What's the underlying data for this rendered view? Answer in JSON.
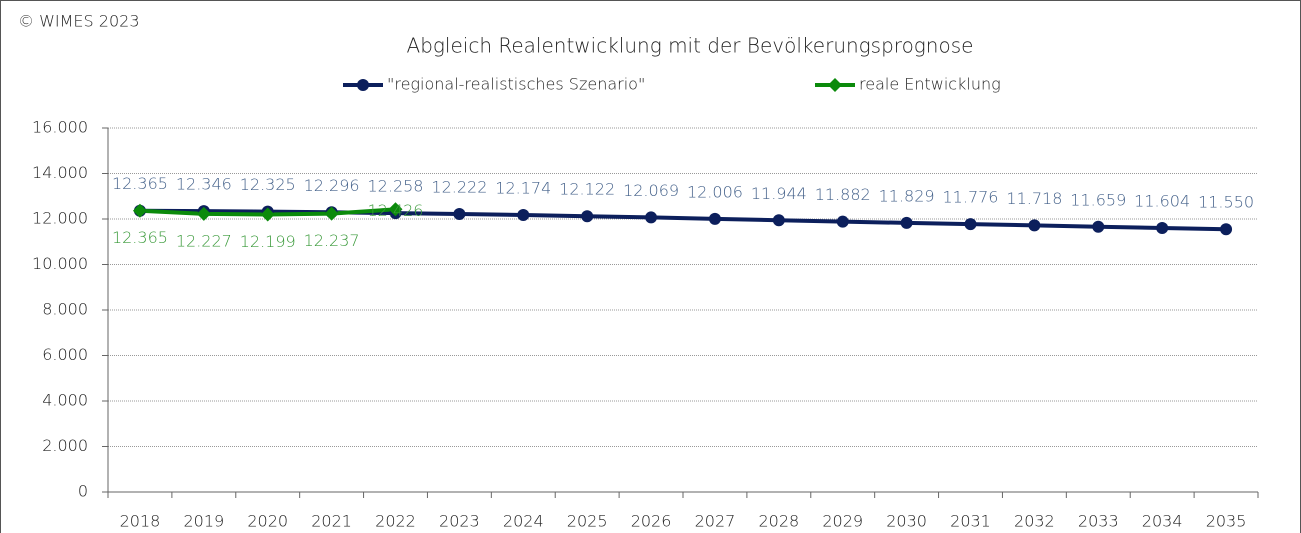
{
  "chart_data": {
    "type": "line",
    "title": "Abgleich Realentwicklung mit der Bevölkerungsprognose",
    "annotation": "© WIMES 2023",
    "categories": [
      "2018",
      "2019",
      "2020",
      "2021",
      "2022",
      "2023",
      "2024",
      "2025",
      "2026",
      "2027",
      "2028",
      "2029",
      "2030",
      "2031",
      "2032",
      "2033",
      "2034",
      "2035"
    ],
    "series": [
      {
        "name": "\"regional-realistisches Szenario\"",
        "color": "#0c1f5c",
        "label_color": "#44618a",
        "marker": "circle",
        "values": [
          12365,
          12346,
          12325,
          12296,
          12258,
          12222,
          12174,
          12122,
          12069,
          12006,
          11944,
          11882,
          11829,
          11776,
          11718,
          11659,
          11604,
          11550
        ],
        "value_labels": [
          "12.365",
          "12.346",
          "12.325",
          "12.296",
          "12.258",
          "12.222",
          "12.174",
          "12.122",
          "12.069",
          "12.006",
          "11.944",
          "11.882",
          "11.829",
          "11.776",
          "11.718",
          "11.659",
          "11.604",
          "11.550"
        ]
      },
      {
        "name": "reale Entwicklung",
        "color": "#0b8a0b",
        "label_color": "#3a9a3a",
        "marker": "diamond",
        "values": [
          12365,
          12227,
          12199,
          12237,
          12426,
          null,
          null,
          null,
          null,
          null,
          null,
          null,
          null,
          null,
          null,
          null,
          null,
          null
        ],
        "value_labels": [
          "12.365",
          "12.227",
          "12.199",
          "12.237",
          "12.426",
          null,
          null,
          null,
          null,
          null,
          null,
          null,
          null,
          null,
          null,
          null,
          null,
          null
        ]
      }
    ],
    "ylim": [
      0,
      16000
    ],
    "yticks": [
      0,
      {
        "value": 2000,
        "label": "2.000"
      },
      {
        "value": 4000,
        "label": "4.000"
      },
      {
        "value": 6000,
        "label": "6.000"
      },
      {
        "value": 8000,
        "label": "8.000"
      },
      {
        "value": 10000,
        "label": "10.000"
      },
      {
        "value": 12000,
        "label": "12.000"
      },
      {
        "value": 14000,
        "label": "14.000"
      },
      {
        "value": 16000,
        "label": "16.000"
      }
    ],
    "grid": true
  }
}
